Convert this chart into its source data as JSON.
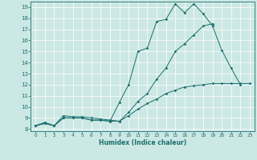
{
  "xlabel": "Humidex (Indice chaleur)",
  "bg_color": "#cce8e4",
  "line_color": "#1a6e6e",
  "grid_color": "#ffffff",
  "xlim": [
    -0.5,
    23.5
  ],
  "ylim": [
    7.8,
    19.5
  ],
  "xticks": [
    0,
    1,
    2,
    3,
    4,
    5,
    6,
    7,
    8,
    9,
    10,
    11,
    12,
    13,
    14,
    15,
    16,
    17,
    18,
    19,
    20,
    21,
    22,
    23
  ],
  "yticks": [
    8,
    9,
    10,
    11,
    12,
    13,
    14,
    15,
    16,
    17,
    18,
    19
  ],
  "line1_x": [
    0,
    1,
    2,
    3,
    4,
    5,
    6,
    7,
    8,
    9,
    10,
    11,
    12,
    13,
    14,
    15,
    16,
    17,
    18,
    19,
    20,
    21,
    22
  ],
  "line1_y": [
    8.3,
    8.5,
    8.3,
    9.0,
    9.0,
    9.0,
    8.8,
    8.8,
    8.7,
    10.4,
    12.0,
    15.0,
    15.3,
    17.7,
    17.9,
    19.3,
    18.5,
    19.3,
    18.4,
    17.3,
    15.1,
    13.5,
    12.0
  ],
  "line2_x": [
    0,
    1,
    2,
    3,
    4,
    5,
    6,
    7,
    8,
    9,
    10,
    11,
    12,
    13,
    14,
    15,
    16,
    17,
    18,
    19
  ],
  "line2_y": [
    8.3,
    8.5,
    8.3,
    9.0,
    9.0,
    9.0,
    8.8,
    8.8,
    8.7,
    8.7,
    9.5,
    10.5,
    11.2,
    12.5,
    13.5,
    15.0,
    15.7,
    16.5,
    17.3,
    17.5
  ],
  "line3_x": [
    0,
    1,
    2,
    3,
    4,
    5,
    6,
    7,
    8,
    9,
    10,
    11,
    12,
    13,
    14,
    15,
    16,
    17,
    18,
    19,
    20,
    21,
    22,
    23
  ],
  "line3_y": [
    8.3,
    8.6,
    8.3,
    9.2,
    9.1,
    9.1,
    9.0,
    8.9,
    8.8,
    8.7,
    9.2,
    9.8,
    10.3,
    10.7,
    11.2,
    11.5,
    11.8,
    11.9,
    12.0,
    12.1,
    12.1,
    12.1,
    12.1,
    12.1
  ]
}
